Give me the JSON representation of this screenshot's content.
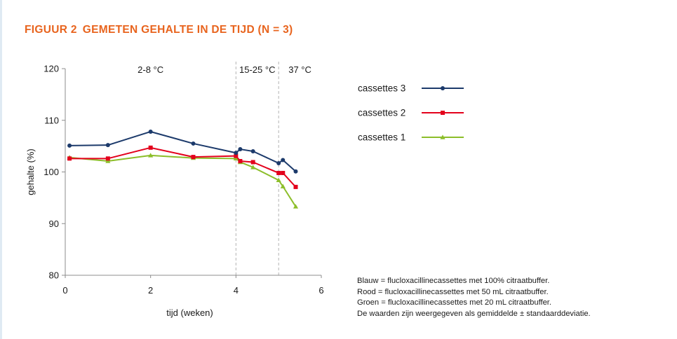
{
  "figure": {
    "label": "FIGUUR 2",
    "title": "GEMETEN GEHALTE IN DE TIJD (N = 3)"
  },
  "colors": {
    "title": "#e8641e",
    "series_blue": "#1c3a6b",
    "series_red": "#e3001b",
    "series_green": "#8cbe2a",
    "divider": "#b3b3b3",
    "axis": "#8c8c8c"
  },
  "chart_data": {
    "type": "line",
    "xlabel": "tijd (weken)",
    "ylabel": "gehalte (%)",
    "xlim": [
      0,
      6
    ],
    "ylim": [
      80,
      120
    ],
    "x_ticks": [
      0,
      2,
      4,
      6
    ],
    "y_ticks": [
      80,
      90,
      100,
      110,
      120
    ],
    "grid": false,
    "legend_position": "top-right",
    "temperature_dividers": [
      4,
      5
    ],
    "temperature_labels": [
      {
        "text": "2-8 °C",
        "x": 2
      },
      {
        "text": "15-25 °C",
        "x": 4.5
      },
      {
        "text": "37 °C",
        "x": 5.5
      }
    ],
    "series": [
      {
        "name": "cassettes 3",
        "color": "#1c3a6b",
        "marker": "circle",
        "x": [
          0.1,
          1.0,
          2.0,
          3.0,
          4.0,
          4.1,
          4.4,
          5.0,
          5.1,
          5.4
        ],
        "y": [
          105.1,
          105.2,
          107.8,
          105.5,
          103.7,
          104.4,
          104.0,
          101.7,
          102.3,
          100.1
        ]
      },
      {
        "name": "cassettes 2",
        "color": "#e3001b",
        "marker": "square",
        "x": [
          0.1,
          1.0,
          2.0,
          3.0,
          4.0,
          4.1,
          4.4,
          5.0,
          5.1,
          5.4
        ],
        "y": [
          102.6,
          102.6,
          104.7,
          102.9,
          103.1,
          102.1,
          101.9,
          99.8,
          99.8,
          97.1
        ]
      },
      {
        "name": "cassettes 1",
        "color": "#8cbe2a",
        "marker": "triangle",
        "x": [
          0.1,
          1.0,
          2.0,
          3.0,
          4.0,
          4.1,
          4.4,
          5.0,
          5.1,
          5.4
        ],
        "y": [
          102.8,
          102.1,
          103.2,
          102.7,
          102.6,
          101.9,
          100.9,
          98.4,
          97.2,
          93.3
        ]
      }
    ]
  },
  "notes": [
    "Blauw = flucloxacillinecassettes met 100% citraatbuffer.",
    "Rood = flucloxacillinecassettes met 50 mL citraatbuffer.",
    "Groen = flucloxacillinecassettes met 20 mL citraatbuffer.",
    "De waarden zijn weergegeven als gemiddelde ± standaarddeviatie."
  ]
}
